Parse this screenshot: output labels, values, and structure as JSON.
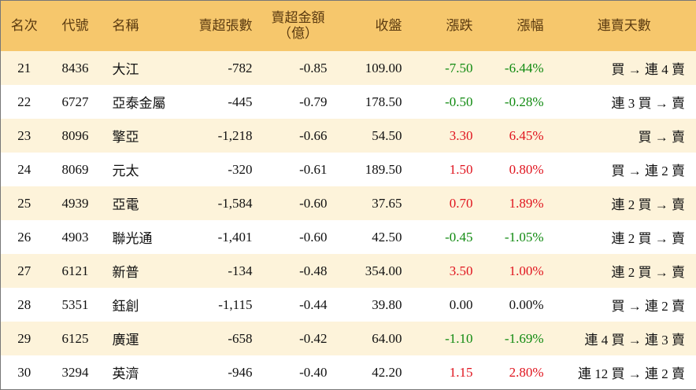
{
  "table": {
    "header": [
      "名次",
      "代號",
      "名稱",
      "賣超張數",
      "賣超金額\n（億）",
      "收盤",
      "漲跌",
      "漲幅",
      "連賣天數"
    ],
    "rows": [
      [
        "21",
        "8436",
        "大江",
        "-782",
        "-0.85",
        "109.00",
        "-7.50",
        "-6.44%",
        "買 → 連 4 賣"
      ],
      [
        "22",
        "6727",
        "亞泰金屬",
        "-445",
        "-0.79",
        "178.50",
        "-0.50",
        "-0.28%",
        "連 3 買 → 賣"
      ],
      [
        "23",
        "8096",
        "擎亞",
        "-1,218",
        "-0.66",
        "54.50",
        "3.30",
        "6.45%",
        "買 → 賣"
      ],
      [
        "24",
        "8069",
        "元太",
        "-320",
        "-0.61",
        "189.50",
        "1.50",
        "0.80%",
        "買 → 連 2 賣"
      ],
      [
        "25",
        "4939",
        "亞電",
        "-1,584",
        "-0.60",
        "37.65",
        "0.70",
        "1.89%",
        "連 2 買 → 賣"
      ],
      [
        "26",
        "4903",
        "聯光通",
        "-1,401",
        "-0.60",
        "42.50",
        "-0.45",
        "-1.05%",
        "連 2 買 → 賣"
      ],
      [
        "27",
        "6121",
        "新普",
        "-134",
        "-0.48",
        "354.00",
        "3.50",
        "1.00%",
        "連 2 買 → 賣"
      ],
      [
        "28",
        "5351",
        "鈺創",
        "-1,115",
        "-0.44",
        "39.80",
        "0.00",
        "0.00%",
        "買 → 連 2 賣"
      ],
      [
        "29",
        "6125",
        "廣運",
        "-658",
        "-0.42",
        "64.00",
        "-1.10",
        "-1.69%",
        "連 4 買 → 連 3 賣"
      ],
      [
        "30",
        "3294",
        "英濟",
        "-946",
        "-0.40",
        "42.20",
        "1.15",
        "2.80%",
        "連 12 買 → 連 2 賣"
      ]
    ],
    "up_color": "#e0141e",
    "down_color": "#108a10",
    "flat_color": "#111111"
  }
}
